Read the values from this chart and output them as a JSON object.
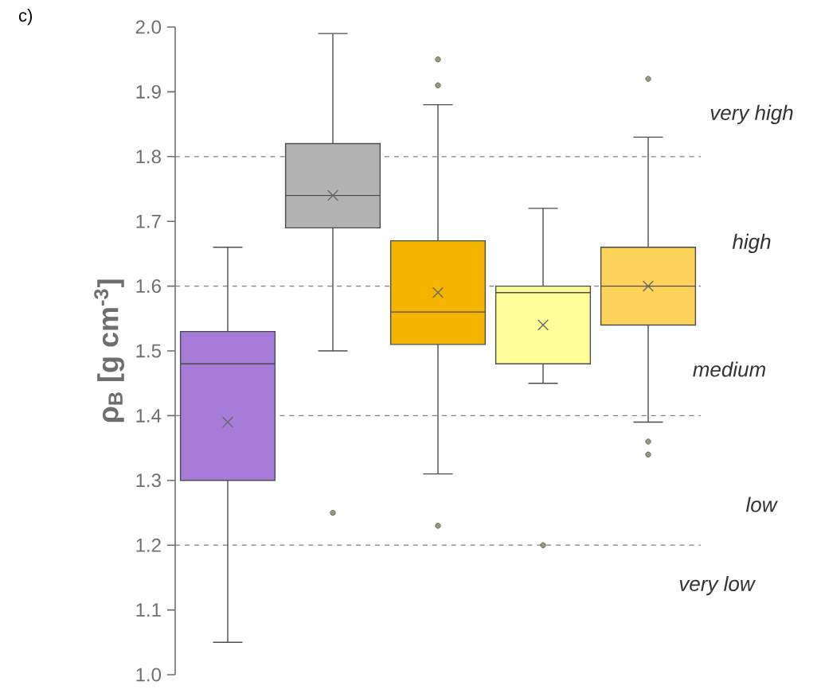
{
  "chart_data": {
    "type": "box",
    "title": "c)",
    "ylabel": "ρ$_{B}$ [g cm$^{-3}$]",
    "categories": [
      null,
      null,
      null,
      null,
      null
    ],
    "colors": [
      "#a77bd8",
      "#b3b3b3",
      "#f5b400",
      "#ffff99",
      "#fdd35a"
    ],
    "boxes": [
      {
        "low": 1.05,
        "q1": 1.3,
        "median": 1.48,
        "q3": 1.53,
        "high": 1.66,
        "mean": 1.39
      },
      {
        "low": 1.5,
        "q1": 1.69,
        "median": 1.74,
        "q3": 1.82,
        "high": 1.99,
        "mean": 1.74,
        "outliers": [
          1.25
        ]
      },
      {
        "low": 1.31,
        "q1": 1.51,
        "median": 1.56,
        "q3": 1.67,
        "high": 1.88,
        "mean": 1.59,
        "outliers": [
          1.95,
          1.91,
          1.23
        ]
      },
      {
        "low": 1.45,
        "q1": 1.48,
        "median": 1.59,
        "q3": 1.6,
        "high": 1.72,
        "mean": 1.54,
        "outliers": [
          1.2
        ]
      },
      {
        "low": 1.39,
        "q1": 1.54,
        "median": 1.6,
        "q3": 1.66,
        "high": 1.83,
        "mean": 1.6,
        "outliers": [
          1.92,
          1.36,
          1.34
        ]
      }
    ],
    "ylim": [
      1.0,
      2.0
    ],
    "yticks": [
      {
        "value": 1.0,
        "label": "1.0"
      },
      {
        "value": 1.1,
        "label": "1.1"
      },
      {
        "value": 1.2,
        "label": "1.2"
      },
      {
        "value": 1.3,
        "label": "1.3"
      },
      {
        "value": 1.4,
        "label": "1.4"
      },
      {
        "value": 1.5,
        "label": "1.5"
      },
      {
        "value": 1.6,
        "label": "1.6"
      },
      {
        "value": 1.7,
        "label": "1.7"
      },
      {
        "value": 1.8,
        "label": "1.8"
      },
      {
        "value": 1.9,
        "label": "1.9"
      },
      {
        "value": 2.0,
        "label": "2.0"
      }
    ],
    "tick_labels": "y",
    "ref_lines": [
      {
        "axis": "y",
        "value": 1.2,
        "color": "#808080",
        "line_style": "dashed"
      },
      {
        "axis": "y",
        "value": 1.4,
        "color": "#808080",
        "line_style": "dashed"
      },
      {
        "axis": "y",
        "value": 1.6,
        "color": "#808080",
        "line_style": "dashed"
      },
      {
        "axis": "y",
        "value": 1.8,
        "color": "#808080",
        "line_style": "dashed"
      }
    ],
    "annotations": [
      "very high",
      "high",
      "medium",
      "low",
      "very low"
    ]
  }
}
